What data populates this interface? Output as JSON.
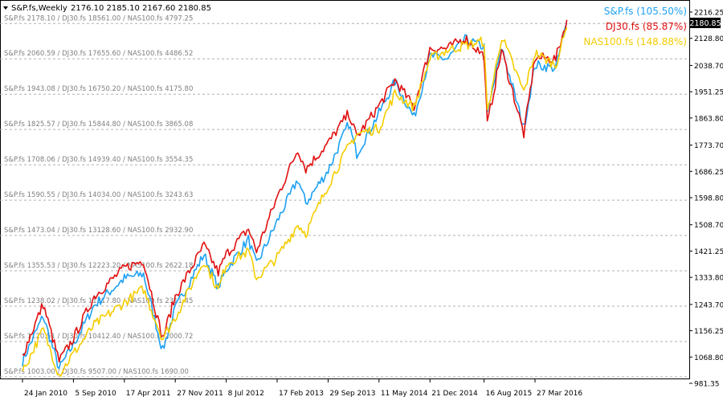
{
  "header": {
    "symbol_timeframe": "S&P.fs,Weekly",
    "ohlc": "2176.10 2185.10 2167.60 2180.85"
  },
  "legend": [
    {
      "label": "S&P.fs (105.50%)",
      "color": "#1da1f2"
    },
    {
      "label": "DJ30.fs (85.87%)",
      "color": "#e01010"
    },
    {
      "label": "NAS100.fs (148.88%)",
      "color": "#f5cd00"
    }
  ],
  "chart_data": {
    "type": "line",
    "title": "S&P.fs,Weekly",
    "x_tick_labels": [
      "24 Jan 2010",
      "5 Sep 2010",
      "17 Apr 2011",
      "27 Nov 2011",
      "8 Jul 2012",
      "17 Feb 2013",
      "29 Sep 2013",
      "11 May 2014",
      "21 Dec 2014",
      "16 Aug 2015",
      "27 Mar 2016"
    ],
    "y_tick_labels": [
      "2216.25",
      "2128.80",
      "2038.70",
      "1951.25",
      "1863.80",
      "1773.70",
      "1686.25",
      "1598.80",
      "1508.70",
      "1421.25",
      "1333.80",
      "1243.70",
      "1156.25",
      "1068.80",
      "981.35"
    ],
    "ylim": [
      981.35,
      2216.25
    ],
    "current_price": "2180.85",
    "grid": true,
    "level_labels": [
      "S&P.fs 2178.10 / DJ30.fs 18561.00 / NAS100.fs 4797.25",
      "S&P.fs 2060.59 / DJ30.fs 17655.60 / NAS100.fs 4486.52",
      "S&P.fs 1943.08 / DJ30.fs 16750.20 / NAS100.fs 4175.80",
      "S&P.fs 1825.57 / DJ30.fs 15844.80 / NAS100.fs 3865.08",
      "S&P.fs 1708.06 / DJ30.fs 14939.40 / NAS100.fs 3554.35",
      "S&P.fs 1590.55 / DJ30.fs 14034.00 / NAS100.fs 3243.63",
      "S&P.fs 1473.04 / DJ30.fs 13128.60 / NAS100.fs 2932.90",
      "S&P.fs 1355.53 / DJ30.fs 12223.20 / NAS100.fs 2622.18",
      "S&P.fs 1238.02 / DJ30.fs 11317.80 / NAS100.fs 2311.45",
      "S&P.fs 1120.51 / DJ30.fs 10412.40 / NAS100.fs 2000.72",
      "S&P.fs 1003.00 / DJ30.fs 9507.00 / NAS100.fs 1690.00"
    ],
    "series": [
      {
        "name": "S&P.fs",
        "color": "#1da1f2",
        "points": [
          [
            "2010-01-24",
            1055
          ],
          [
            "2010-04-25",
            1205
          ],
          [
            "2010-07-04",
            1030
          ],
          [
            "2010-09-05",
            1110
          ],
          [
            "2010-12-05",
            1240
          ],
          [
            "2011-04-17",
            1330
          ],
          [
            "2011-07-10",
            1345
          ],
          [
            "2011-10-02",
            1090
          ],
          [
            "2011-11-27",
            1230
          ],
          [
            "2012-04-01",
            1410
          ],
          [
            "2012-06-03",
            1300
          ],
          [
            "2012-07-08",
            1360
          ],
          [
            "2012-10-14",
            1460
          ],
          [
            "2012-11-18",
            1375
          ],
          [
            "2013-02-17",
            1520
          ],
          [
            "2013-05-19",
            1660
          ],
          [
            "2013-06-23",
            1580
          ],
          [
            "2013-09-29",
            1690
          ],
          [
            "2013-12-29",
            1845
          ],
          [
            "2014-02-02",
            1745
          ],
          [
            "2014-05-11",
            1880
          ],
          [
            "2014-07-20",
            1985
          ],
          [
            "2014-10-12",
            1865
          ],
          [
            "2014-12-21",
            2070
          ],
          [
            "2015-03-08",
            2060
          ],
          [
            "2015-05-24",
            2125
          ],
          [
            "2015-08-16",
            2100
          ],
          [
            "2015-08-30",
            1870
          ],
          [
            "2015-11-01",
            2100
          ],
          [
            "2016-02-07",
            1830
          ],
          [
            "2016-03-27",
            2040
          ],
          [
            "2016-06-26",
            2030
          ],
          [
            "2016-08-14",
            2180
          ]
        ]
      },
      {
        "name": "DJ30.fs",
        "color": "#e01010",
        "points": [
          [
            "2010-01-24",
            1075
          ],
          [
            "2010-04-25",
            1245
          ],
          [
            "2010-07-04",
            1055
          ],
          [
            "2010-09-05",
            1130
          ],
          [
            "2010-12-05",
            1270
          ],
          [
            "2011-04-17",
            1365
          ],
          [
            "2011-07-10",
            1390
          ],
          [
            "2011-10-02",
            1130
          ],
          [
            "2011-11-27",
            1270
          ],
          [
            "2012-04-01",
            1440
          ],
          [
            "2012-06-03",
            1350
          ],
          [
            "2012-07-08",
            1410
          ],
          [
            "2012-10-14",
            1495
          ],
          [
            "2012-11-18",
            1420
          ],
          [
            "2013-02-17",
            1600
          ],
          [
            "2013-05-19",
            1760
          ],
          [
            "2013-06-23",
            1695
          ],
          [
            "2013-09-29",
            1780
          ],
          [
            "2013-12-29",
            1880
          ],
          [
            "2014-02-02",
            1800
          ],
          [
            "2014-05-11",
            1905
          ],
          [
            "2014-07-20",
            1990
          ],
          [
            "2014-10-12",
            1900
          ],
          [
            "2014-12-21",
            2095
          ],
          [
            "2015-03-08",
            2095
          ],
          [
            "2015-05-24",
            2130
          ],
          [
            "2015-08-16",
            2070
          ],
          [
            "2015-08-30",
            1840
          ],
          [
            "2015-11-01",
            2090
          ],
          [
            "2016-02-07",
            1810
          ],
          [
            "2016-03-27",
            2065
          ],
          [
            "2016-06-26",
            2060
          ],
          [
            "2016-08-14",
            2190
          ]
        ]
      },
      {
        "name": "NAS100.fs",
        "color": "#f5cd00",
        "points": [
          [
            "2010-01-24",
            1020
          ],
          [
            "2010-04-25",
            1160
          ],
          [
            "2010-07-04",
            1010
          ],
          [
            "2010-09-05",
            1080
          ],
          [
            "2010-12-05",
            1175
          ],
          [
            "2011-04-17",
            1250
          ],
          [
            "2011-07-10",
            1295
          ],
          [
            "2011-10-02",
            1130
          ],
          [
            "2011-11-27",
            1200
          ],
          [
            "2012-04-01",
            1390
          ],
          [
            "2012-06-03",
            1290
          ],
          [
            "2012-07-08",
            1380
          ],
          [
            "2012-10-14",
            1420
          ],
          [
            "2012-11-18",
            1330
          ],
          [
            "2013-02-17",
            1400
          ],
          [
            "2013-05-19",
            1510
          ],
          [
            "2013-06-23",
            1480
          ],
          [
            "2013-09-29",
            1640
          ],
          [
            "2013-12-29",
            1770
          ],
          [
            "2014-02-02",
            1810
          ],
          [
            "2014-05-11",
            1830
          ],
          [
            "2014-07-20",
            1945
          ],
          [
            "2014-10-12",
            1900
          ],
          [
            "2014-12-21",
            2060
          ],
          [
            "2015-03-08",
            2090
          ],
          [
            "2015-05-24",
            2105
          ],
          [
            "2015-08-16",
            2120
          ],
          [
            "2015-08-30",
            1880
          ],
          [
            "2015-11-01",
            2135
          ],
          [
            "2016-02-07",
            1950
          ],
          [
            "2016-03-27",
            2080
          ],
          [
            "2016-06-26",
            2040
          ],
          [
            "2016-08-14",
            2165
          ]
        ]
      }
    ]
  }
}
